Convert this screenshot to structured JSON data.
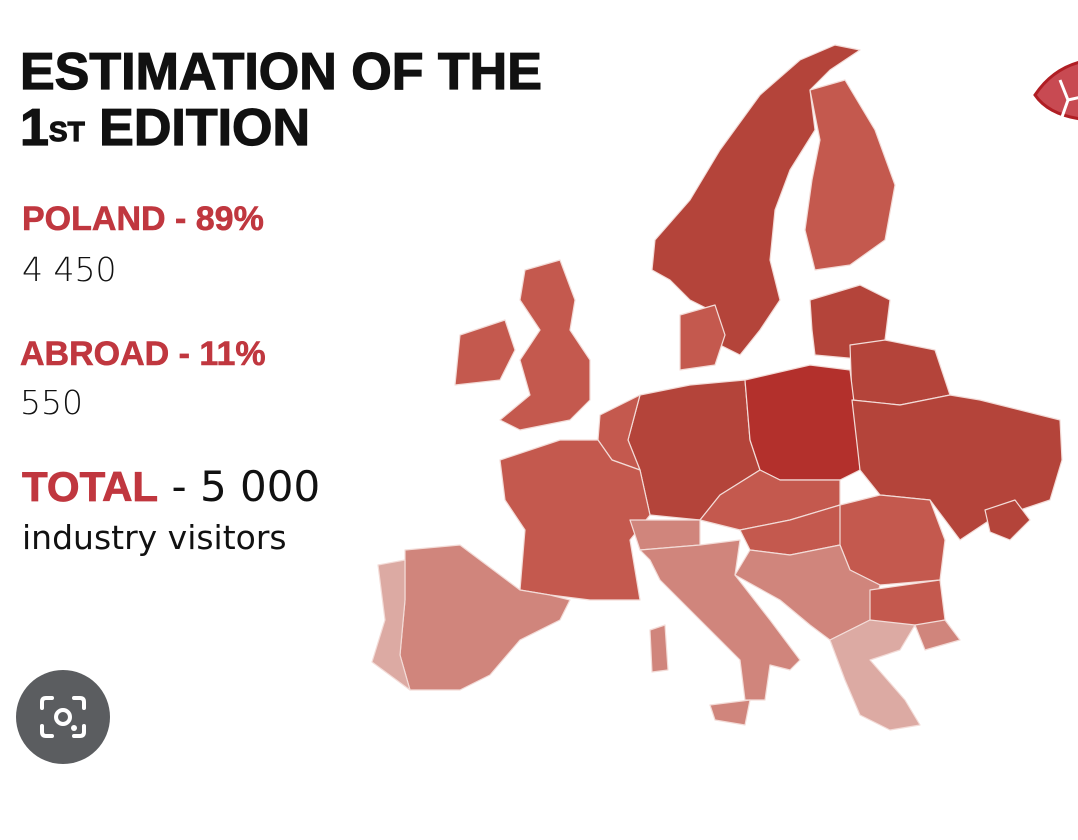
{
  "title": {
    "line1": "ESTIMATION OF THE",
    "line2_num": "1",
    "line2_sup": "ST",
    "line2_rest": "EDITION"
  },
  "stats": {
    "poland": {
      "label": "POLAND - 89%",
      "value": "4 450"
    },
    "abroad": {
      "label": "ABROAD - 11%",
      "value": "550"
    },
    "total": {
      "label": "TOTAL",
      "value": "- 5 000",
      "unit": "industry visitors"
    }
  },
  "map": {
    "region": "Europe",
    "highlighted_country": "Poland",
    "colors": {
      "poland": "#b3302c",
      "dark": "#b4443a",
      "mid": "#c4594e",
      "light": "#d0857c",
      "lighter": "#dcaaa3",
      "accent_text": "#c0373f"
    }
  },
  "lens_button": {
    "icon": "camera-search-icon"
  }
}
